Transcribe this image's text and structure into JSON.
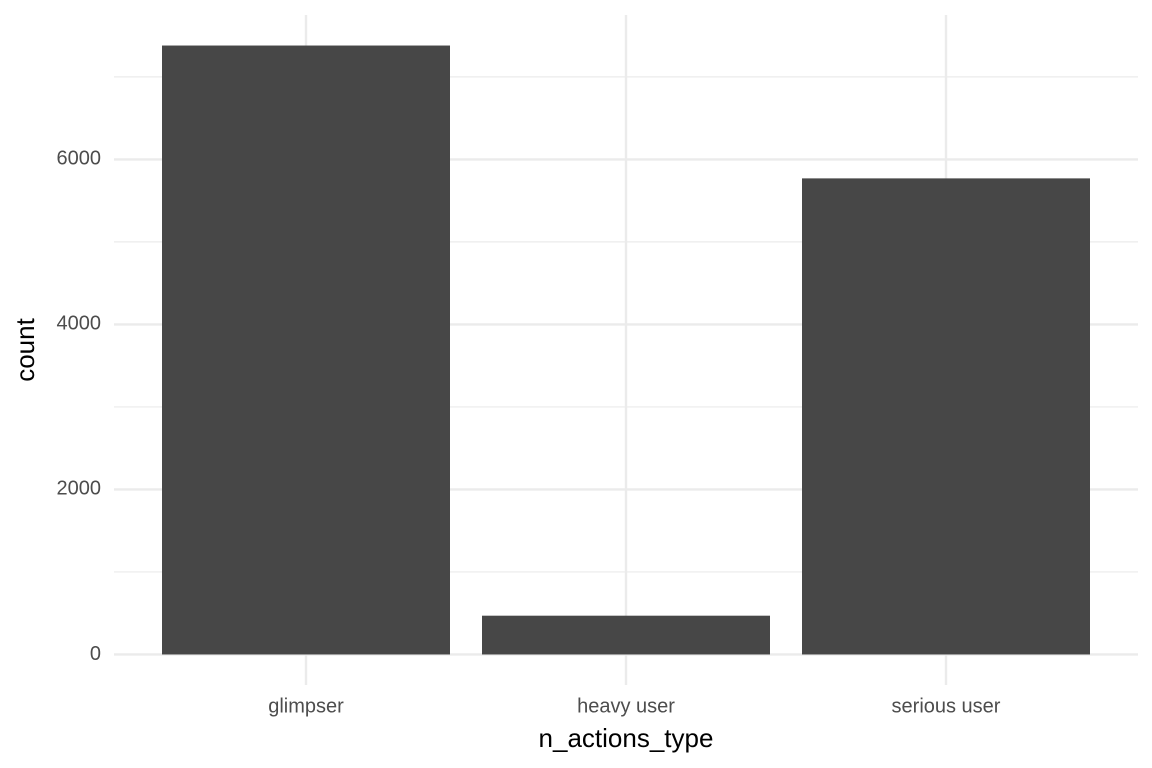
{
  "chart_data": {
    "type": "bar",
    "x_label": "n_actions_type",
    "y_label": "count",
    "categories": [
      "glimpser",
      "heavy user",
      "serious user"
    ],
    "values": [
      7380,
      470,
      5770
    ],
    "color": "#474747",
    "ylim": [
      -370,
      7750
    ],
    "yticks": [
      0,
      2000,
      4000,
      6000
    ],
    "minor_yticks": [
      1000,
      3000,
      5000,
      7000
    ],
    "grid": true
  }
}
